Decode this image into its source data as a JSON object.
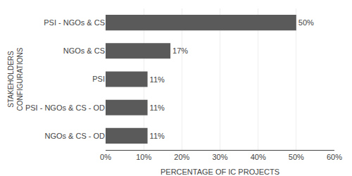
{
  "chart_data": {
    "type": "bar",
    "orientation": "horizontal",
    "categories": [
      "NGOs & CS - OD",
      "PSI - NGOs & CS - OD",
      "PSI",
      "NGOs & CS",
      "PSI - NGOs & CS"
    ],
    "values": [
      11,
      11,
      11,
      17,
      50
    ],
    "value_labels": [
      "11%",
      "11%",
      "11%",
      "17%",
      "50%"
    ],
    "data_labels": true,
    "color": "#5a5a5a",
    "xlabel": "PERCENTAGE OF IC PROJECTS",
    "ylabel": "STAKEHOLDERS\nCONFIGURATIONS",
    "xlim": [
      0,
      60
    ],
    "xticks": [
      {
        "value": 0,
        "label": "0%"
      },
      {
        "value": 10,
        "label": "10%"
      },
      {
        "value": 20,
        "label": "20%"
      },
      {
        "value": 30,
        "label": "30%"
      },
      {
        "value": 40,
        "label": "40%"
      },
      {
        "value": 50,
        "label": "50%"
      },
      {
        "value": 60,
        "label": "60%"
      }
    ],
    "grid": true
  }
}
